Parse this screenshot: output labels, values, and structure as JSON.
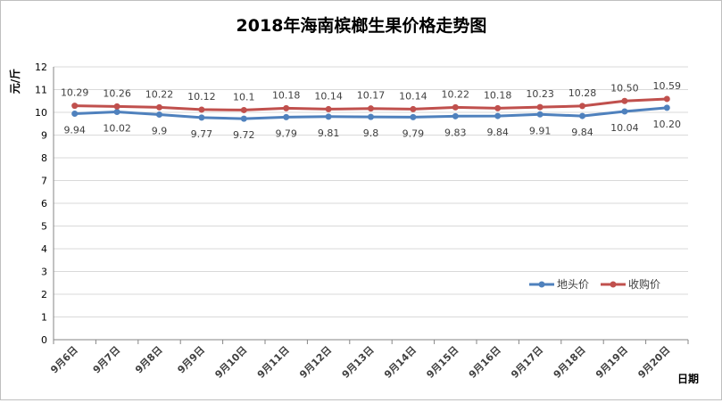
{
  "chart_data": {
    "type": "line",
    "title": "2018年海南槟榔生果价格走势图",
    "xlabel": "日期",
    "ylabel": "元/斤",
    "ylim": [
      0,
      12
    ],
    "yticks": [
      0,
      1,
      2,
      3,
      4,
      5,
      6,
      7,
      8,
      9,
      10,
      11,
      12
    ],
    "categories": [
      "9月6日",
      "9月7日",
      "9月8日",
      "9月9日",
      "9月10日",
      "9月11日",
      "9月12日",
      "9月13日",
      "9月14日",
      "9月15日",
      "9月16日",
      "9月17日",
      "9月18日",
      "9月19日",
      "9月20日"
    ],
    "grid": "horizontal",
    "legend_position": "right",
    "series": [
      {
        "name": "地头价",
        "color": "#4f81bd",
        "values": [
          9.94,
          10.02,
          9.9,
          9.77,
          9.72,
          9.79,
          9.81,
          9.8,
          9.79,
          9.83,
          9.84,
          9.91,
          9.84,
          10.04,
          10.2
        ],
        "labels": [
          "9.94",
          "10.02",
          "9.9",
          "9.77",
          "9.72",
          "9.79",
          "9.81",
          "9.8",
          "9.79",
          "9.83",
          "9.84",
          "9.91",
          "9.84",
          "10.04",
          "10.20"
        ],
        "label_side": "below"
      },
      {
        "name": "收购价",
        "color": "#c0504d",
        "values": [
          10.29,
          10.26,
          10.22,
          10.12,
          10.1,
          10.18,
          10.14,
          10.17,
          10.14,
          10.22,
          10.18,
          10.23,
          10.28,
          10.5,
          10.59
        ],
        "labels": [
          "10.29",
          "10.26",
          "10.22",
          "10.12",
          "10.1",
          "10.18",
          "10.14",
          "10.17",
          "10.14",
          "10.22",
          "10.18",
          "10.23",
          "10.28",
          "10.50",
          "10.59"
        ],
        "label_side": "above"
      }
    ]
  }
}
